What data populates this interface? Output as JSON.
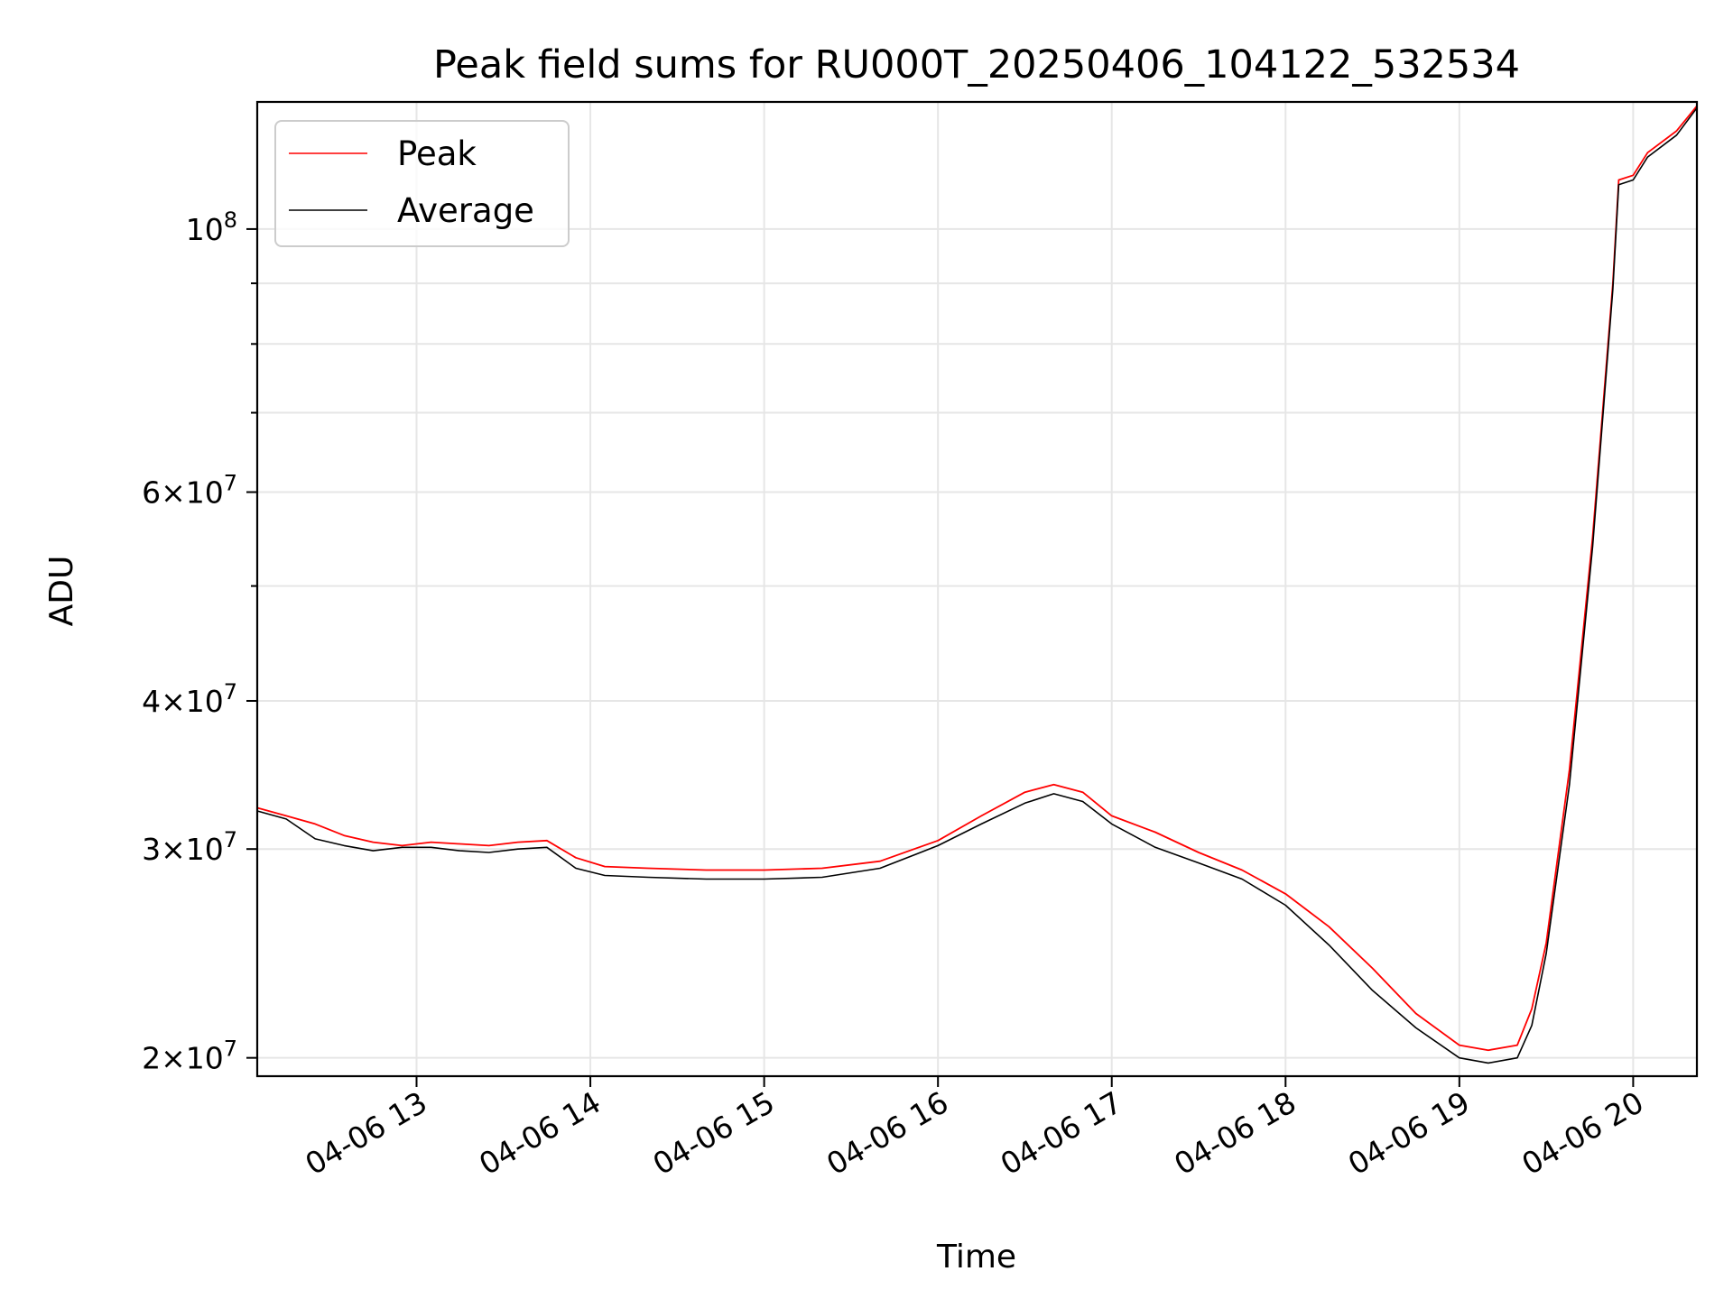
{
  "chart_data": {
    "type": "line",
    "title": "Peak field sums for RU000T_20250406_104122_532534",
    "xlabel": "Time",
    "ylabel": "ADU",
    "y_scale": "log",
    "grid": true,
    "legend_position": "top-left",
    "xlim": [
      "2025-04-06 12:05",
      "2025-04-06 20:22"
    ],
    "ylim": [
      19300000,
      128000000
    ],
    "x_ticks": [
      {
        "value": "2025-04-06 13:00",
        "label": "04-06 13"
      },
      {
        "value": "2025-04-06 14:00",
        "label": "04-06 14"
      },
      {
        "value": "2025-04-06 15:00",
        "label": "04-06 15"
      },
      {
        "value": "2025-04-06 16:00",
        "label": "04-06 16"
      },
      {
        "value": "2025-04-06 17:00",
        "label": "04-06 17"
      },
      {
        "value": "2025-04-06 18:00",
        "label": "04-06 18"
      },
      {
        "value": "2025-04-06 19:00",
        "label": "04-06 19"
      },
      {
        "value": "2025-04-06 20:00",
        "label": "04-06 20"
      }
    ],
    "y_ticks_major": [
      {
        "value": 20000000,
        "base": "2",
        "exp": "7"
      },
      {
        "value": 30000000,
        "base": "3",
        "exp": "7"
      },
      {
        "value": 40000000,
        "base": "4",
        "exp": "7"
      },
      {
        "value": 60000000,
        "base": "6",
        "exp": "7"
      },
      {
        "value": 100000000,
        "base": "",
        "exp": "8"
      }
    ],
    "y_ticks_minor": [
      50000000,
      70000000,
      80000000,
      90000000
    ],
    "series": [
      {
        "name": "Peak",
        "color": "#ff0000",
        "spikes": "frequent upward spikes of roughly 2-10% above the average",
        "points": [
          [
            "2025-04-06 12:05",
            32500000
          ],
          [
            "2025-04-06 12:15",
            32000000
          ],
          [
            "2025-04-06 12:25",
            31500000
          ],
          [
            "2025-04-06 12:35",
            30800000
          ],
          [
            "2025-04-06 12:45",
            30400000
          ],
          [
            "2025-04-06 12:55",
            30200000
          ],
          [
            "2025-04-06 13:05",
            30400000
          ],
          [
            "2025-04-06 13:15",
            30300000
          ],
          [
            "2025-04-06 13:25",
            30200000
          ],
          [
            "2025-04-06 13:35",
            30400000
          ],
          [
            "2025-04-06 13:45",
            30500000
          ],
          [
            "2025-04-06 13:55",
            29500000
          ],
          [
            "2025-04-06 14:05",
            29000000
          ],
          [
            "2025-04-06 14:20",
            28900000
          ],
          [
            "2025-04-06 14:40",
            28800000
          ],
          [
            "2025-04-06 15:00",
            28800000
          ],
          [
            "2025-04-06 15:20",
            28900000
          ],
          [
            "2025-04-06 15:40",
            29300000
          ],
          [
            "2025-04-06 16:00",
            30500000
          ],
          [
            "2025-04-06 16:15",
            32000000
          ],
          [
            "2025-04-06 16:30",
            33500000
          ],
          [
            "2025-04-06 16:40",
            34000000
          ],
          [
            "2025-04-06 16:50",
            33500000
          ],
          [
            "2025-04-06 17:00",
            32000000
          ],
          [
            "2025-04-06 17:15",
            31000000
          ],
          [
            "2025-04-06 17:30",
            29800000
          ],
          [
            "2025-04-06 17:45",
            28800000
          ],
          [
            "2025-04-06 18:00",
            27500000
          ],
          [
            "2025-04-06 18:15",
            25800000
          ],
          [
            "2025-04-06 18:30",
            23800000
          ],
          [
            "2025-04-06 18:45",
            21800000
          ],
          [
            "2025-04-06 19:00",
            20500000
          ],
          [
            "2025-04-06 19:10",
            20300000
          ],
          [
            "2025-04-06 19:20",
            20500000
          ],
          [
            "2025-04-06 19:25",
            22000000
          ],
          [
            "2025-04-06 19:30",
            25000000
          ],
          [
            "2025-04-06 19:38",
            35000000
          ],
          [
            "2025-04-06 19:46",
            55000000
          ],
          [
            "2025-04-06 19:53",
            90000000
          ],
          [
            "2025-04-06 19:55",
            110000000
          ],
          [
            "2025-04-06 20:00",
            111000000
          ],
          [
            "2025-04-06 20:05",
            116000000
          ],
          [
            "2025-04-06 20:15",
            121000000
          ],
          [
            "2025-04-06 20:22",
            127000000
          ]
        ]
      },
      {
        "name": "Average",
        "color": "#000000",
        "points": [
          [
            "2025-04-06 12:05",
            32300000
          ],
          [
            "2025-04-06 12:15",
            31800000
          ],
          [
            "2025-04-06 12:25",
            30600000
          ],
          [
            "2025-04-06 12:35",
            30200000
          ],
          [
            "2025-04-06 12:45",
            29900000
          ],
          [
            "2025-04-06 12:55",
            30100000
          ],
          [
            "2025-04-06 13:05",
            30100000
          ],
          [
            "2025-04-06 13:15",
            29900000
          ],
          [
            "2025-04-06 13:25",
            29800000
          ],
          [
            "2025-04-06 13:35",
            30000000
          ],
          [
            "2025-04-06 13:45",
            30100000
          ],
          [
            "2025-04-06 13:55",
            28900000
          ],
          [
            "2025-04-06 14:05",
            28500000
          ],
          [
            "2025-04-06 14:20",
            28400000
          ],
          [
            "2025-04-06 14:40",
            28300000
          ],
          [
            "2025-04-06 15:00",
            28300000
          ],
          [
            "2025-04-06 15:20",
            28400000
          ],
          [
            "2025-04-06 15:40",
            28900000
          ],
          [
            "2025-04-06 16:00",
            30200000
          ],
          [
            "2025-04-06 16:15",
            31500000
          ],
          [
            "2025-04-06 16:30",
            32800000
          ],
          [
            "2025-04-06 16:40",
            33400000
          ],
          [
            "2025-04-06 16:50",
            32900000
          ],
          [
            "2025-04-06 17:00",
            31500000
          ],
          [
            "2025-04-06 17:15",
            30100000
          ],
          [
            "2025-04-06 17:30",
            29200000
          ],
          [
            "2025-04-06 17:45",
            28300000
          ],
          [
            "2025-04-06 18:00",
            26900000
          ],
          [
            "2025-04-06 18:15",
            24900000
          ],
          [
            "2025-04-06 18:30",
            22800000
          ],
          [
            "2025-04-06 18:45",
            21200000
          ],
          [
            "2025-04-06 19:00",
            20000000
          ],
          [
            "2025-04-06 19:10",
            19800000
          ],
          [
            "2025-04-06 19:20",
            20000000
          ],
          [
            "2025-04-06 19:25",
            21300000
          ],
          [
            "2025-04-06 19:30",
            24500000
          ],
          [
            "2025-04-06 19:38",
            34000000
          ],
          [
            "2025-04-06 19:46",
            54000000
          ],
          [
            "2025-04-06 19:53",
            89000000
          ],
          [
            "2025-04-06 19:55",
            109000000
          ],
          [
            "2025-04-06 20:00",
            110000000
          ],
          [
            "2025-04-06 20:05",
            115000000
          ],
          [
            "2025-04-06 20:15",
            120000000
          ],
          [
            "2025-04-06 20:22",
            126500000
          ]
        ]
      }
    ]
  }
}
